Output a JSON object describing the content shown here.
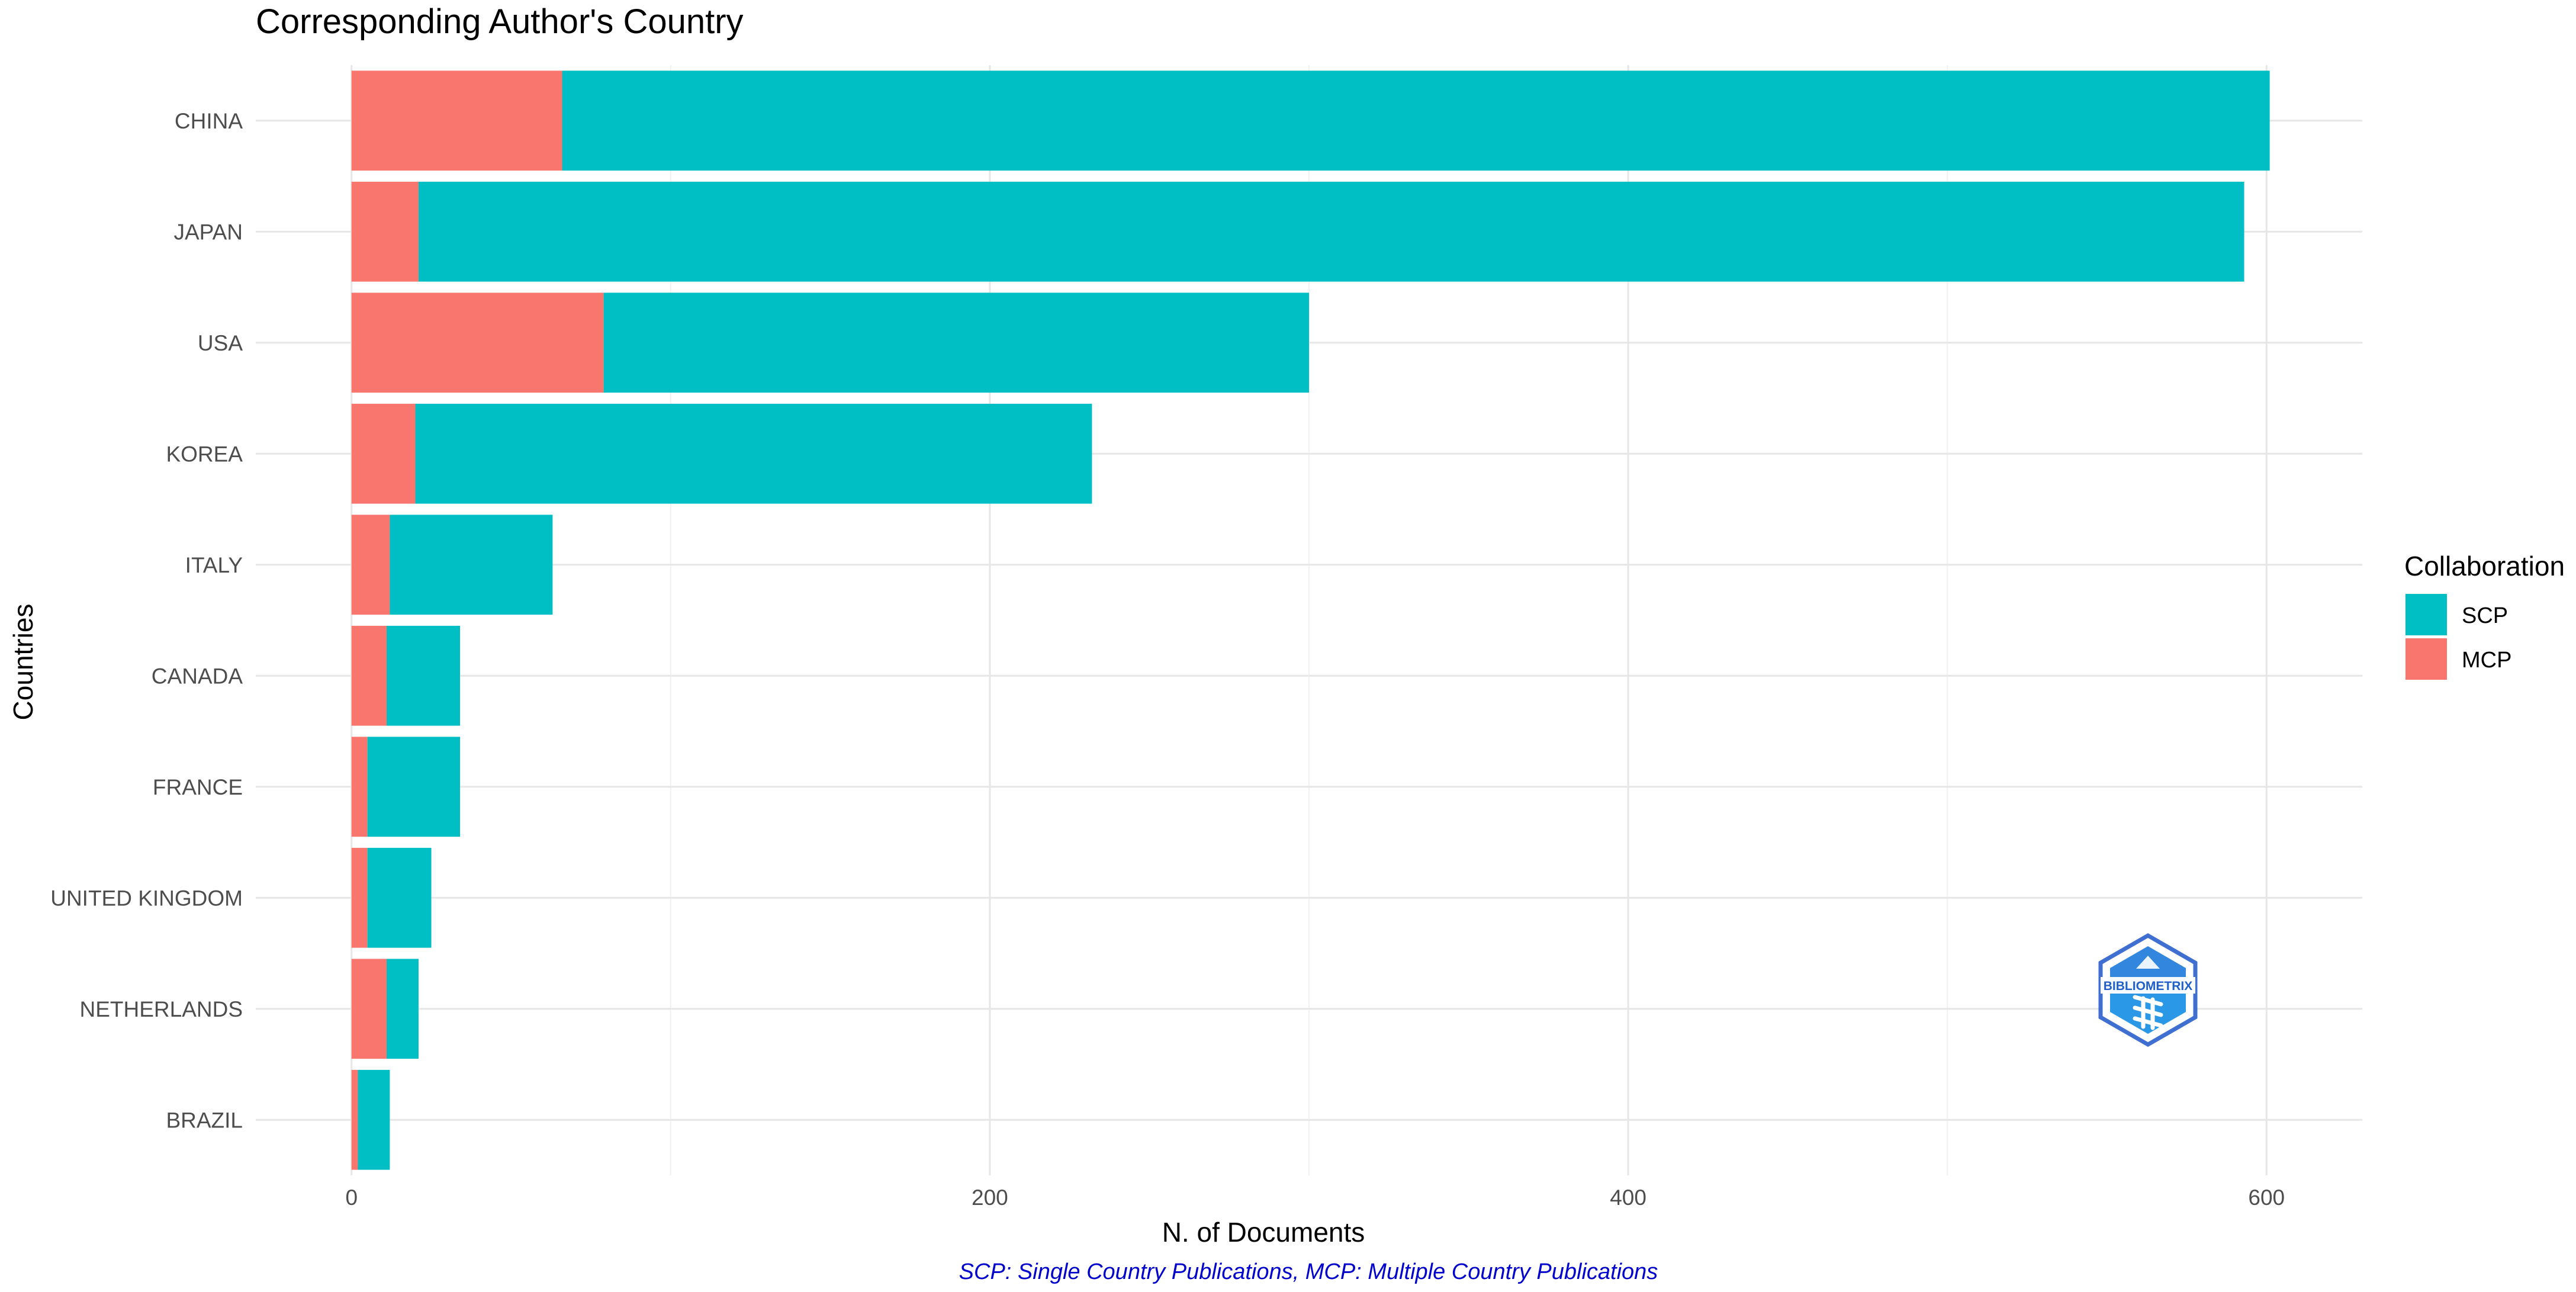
{
  "chart_data": {
    "type": "bar",
    "orientation": "horizontal",
    "stacked": true,
    "title": "Corresponding Author's Country",
    "xlabel": "N. of Documents",
    "ylabel": "Countries",
    "caption": "SCP: Single Country Publications, MCP: Multiple Country Publications",
    "categories": [
      "CHINA",
      "JAPAN",
      "USA",
      "KOREA",
      "ITALY",
      "CANADA",
      "FRANCE",
      "UNITED KINGDOM",
      "NETHERLANDS",
      "BRAZIL"
    ],
    "series": [
      {
        "name": "MCP",
        "color": "#F8766D",
        "values": [
          66,
          21,
          79,
          20,
          12,
          11,
          5,
          5,
          11,
          2
        ]
      },
      {
        "name": "SCP",
        "color": "#00BFC4",
        "values": [
          535,
          572,
          221,
          212,
          51,
          23,
          29,
          20,
          10,
          10
        ]
      }
    ],
    "xlim": [
      -30,
      630
    ],
    "xticks": [
      0,
      200,
      400,
      600
    ],
    "xtick_labels": [
      "0",
      "200",
      "400",
      "600"
    ],
    "grid": true,
    "legend": {
      "title": "Collaboration",
      "position": "right",
      "entries": [
        {
          "label": "SCP",
          "color": "#00BFC4"
        },
        {
          "label": "MCP",
          "color": "#F8766D"
        }
      ]
    },
    "watermark": {
      "text": "BIBLIOMETRIX",
      "position": "bottom-right"
    }
  }
}
